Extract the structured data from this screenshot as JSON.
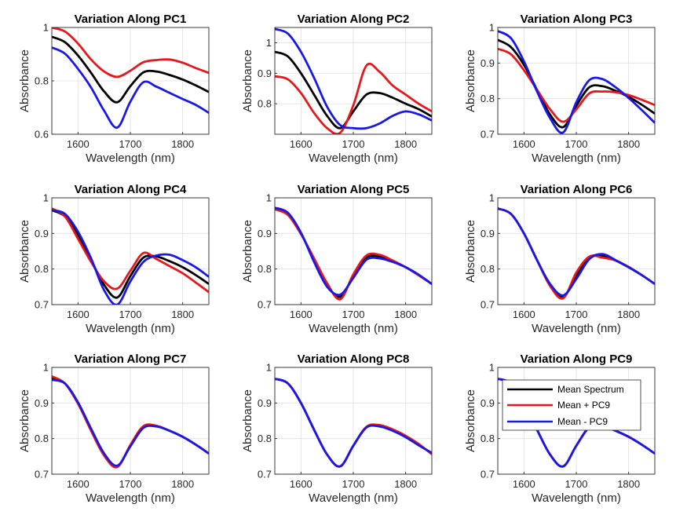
{
  "legend": {
    "entries": [
      "Mean Spectrum",
      "Mean + PC9",
      "Mean - PC9"
    ],
    "colors": [
      "#000000",
      "#e8171b",
      "#1818e8"
    ],
    "location": "northwest of subplot 9"
  },
  "chart_data": [
    {
      "type": "line",
      "title": "Variation Along PC1",
      "xlabel": "Wavelength (nm)",
      "ylabel": "Absorbance",
      "xlim": [
        1550,
        1850
      ],
      "ylim": [
        0.6,
        1.0
      ],
      "xticks": [
        1600,
        1700,
        1800
      ],
      "yticks": [
        0.6,
        0.8,
        1.0
      ],
      "ytick_labels": [
        "0.6",
        "0.8",
        "1"
      ],
      "grid": true,
      "x": [
        1550,
        1575,
        1600,
        1625,
        1650,
        1675,
        1700,
        1725,
        1750,
        1775,
        1800,
        1825,
        1850
      ],
      "series": [
        {
          "name": "Mean Spectrum",
          "color": "#000000",
          "values": [
            0.965,
            0.945,
            0.895,
            0.83,
            0.76,
            0.72,
            0.78,
            0.832,
            0.835,
            0.822,
            0.805,
            0.783,
            0.758
          ]
        },
        {
          "name": "Mean + PC9",
          "color": "#e8171b",
          "values": [
            1.0,
            0.985,
            0.94,
            0.88,
            0.835,
            0.815,
            0.838,
            0.87,
            0.878,
            0.88,
            0.868,
            0.848,
            0.83
          ]
        },
        {
          "name": "Mean - PC9",
          "color": "#1818e8",
          "values": [
            0.925,
            0.902,
            0.845,
            0.775,
            0.688,
            0.625,
            0.722,
            0.795,
            0.778,
            0.755,
            0.732,
            0.71,
            0.68
          ]
        }
      ]
    },
    {
      "type": "line",
      "title": "Variation Along PC2",
      "xlabel": "Wavelength (nm)",
      "ylabel": "Absorbance",
      "xlim": [
        1550,
        1850
      ],
      "ylim": [
        0.7,
        1.05
      ],
      "xticks": [
        1600,
        1700,
        1800
      ],
      "yticks": [
        0.8,
        0.9,
        1.0
      ],
      "ytick_labels": [
        "0.8",
        "0.9",
        "1"
      ],
      "grid": true,
      "x": [
        1550,
        1575,
        1600,
        1625,
        1650,
        1675,
        1700,
        1725,
        1750,
        1775,
        1800,
        1825,
        1850
      ],
      "series": [
        {
          "name": "Mean Spectrum",
          "color": "#000000",
          "values": [
            0.97,
            0.955,
            0.9,
            0.83,
            0.76,
            0.72,
            0.775,
            0.83,
            0.835,
            0.82,
            0.8,
            0.782,
            0.758
          ]
        },
        {
          "name": "Mean + PC9",
          "color": "#e8171b",
          "values": [
            0.89,
            0.88,
            0.835,
            0.77,
            0.72,
            0.705,
            0.795,
            0.925,
            0.905,
            0.86,
            0.83,
            0.8,
            0.775
          ]
        },
        {
          "name": "Mean - PC9",
          "color": "#1818e8",
          "values": [
            1.045,
            1.03,
            0.97,
            0.885,
            0.79,
            0.73,
            0.72,
            0.72,
            0.735,
            0.76,
            0.775,
            0.765,
            0.745
          ]
        }
      ]
    },
    {
      "type": "line",
      "title": "Variation Along PC3",
      "xlabel": "Wavelength (nm)",
      "ylabel": "Absorbance",
      "xlim": [
        1550,
        1850
      ],
      "ylim": [
        0.7,
        1.0
      ],
      "xticks": [
        1600,
        1700,
        1800
      ],
      "yticks": [
        0.7,
        0.8,
        0.9,
        1.0
      ],
      "ytick_labels": [
        "0.7",
        "0.8",
        "0.9",
        "1"
      ],
      "grid": true,
      "x": [
        1550,
        1575,
        1600,
        1625,
        1650,
        1675,
        1700,
        1725,
        1750,
        1775,
        1800,
        1825,
        1850
      ],
      "series": [
        {
          "name": "Mean Spectrum",
          "color": "#000000",
          "values": [
            0.965,
            0.945,
            0.895,
            0.825,
            0.755,
            0.72,
            0.78,
            0.832,
            0.835,
            0.822,
            0.805,
            0.783,
            0.758
          ]
        },
        {
          "name": "Mean + PC9",
          "color": "#e8171b",
          "values": [
            0.94,
            0.925,
            0.88,
            0.825,
            0.77,
            0.735,
            0.77,
            0.815,
            0.82,
            0.818,
            0.81,
            0.797,
            0.782
          ]
        },
        {
          "name": "Mean - PC9",
          "color": "#1818e8",
          "values": [
            0.99,
            0.97,
            0.905,
            0.82,
            0.745,
            0.705,
            0.79,
            0.852,
            0.855,
            0.832,
            0.802,
            0.768,
            0.732
          ]
        }
      ]
    },
    {
      "type": "line",
      "title": "Variation Along PC4",
      "xlabel": "Wavelength (nm)",
      "ylabel": "Absorbance",
      "xlim": [
        1550,
        1850
      ],
      "ylim": [
        0.7,
        1.0
      ],
      "xticks": [
        1600,
        1700,
        1800
      ],
      "yticks": [
        0.7,
        0.8,
        0.9,
        1.0
      ],
      "ytick_labels": [
        "0.7",
        "0.8",
        "0.9",
        "1"
      ],
      "grid": true,
      "x": [
        1550,
        1575,
        1600,
        1625,
        1650,
        1675,
        1700,
        1725,
        1750,
        1775,
        1800,
        1825,
        1850
      ],
      "series": [
        {
          "name": "Mean Spectrum",
          "color": "#000000",
          "values": [
            0.965,
            0.948,
            0.895,
            0.825,
            0.755,
            0.72,
            0.78,
            0.832,
            0.835,
            0.822,
            0.805,
            0.783,
            0.758
          ]
        },
        {
          "name": "Mean + PC9",
          "color": "#e8171b",
          "values": [
            0.97,
            0.948,
            0.885,
            0.82,
            0.765,
            0.745,
            0.795,
            0.845,
            0.828,
            0.808,
            0.788,
            0.762,
            0.735
          ]
        },
        {
          "name": "Mean - PC9",
          "color": "#1818e8",
          "values": [
            0.965,
            0.955,
            0.905,
            0.83,
            0.74,
            0.7,
            0.765,
            0.82,
            0.838,
            0.84,
            0.825,
            0.805,
            0.778
          ]
        }
      ]
    },
    {
      "type": "line",
      "title": "Variation Along PC5",
      "xlabel": "Wavelength (nm)",
      "ylabel": "Absorbance",
      "xlim": [
        1550,
        1850
      ],
      "ylim": [
        0.7,
        1.0
      ],
      "xticks": [
        1600,
        1700,
        1800
      ],
      "yticks": [
        0.7,
        0.8,
        0.9,
        1.0
      ],
      "ytick_labels": [
        "0.7",
        "0.8",
        "0.9",
        "1"
      ],
      "grid": true,
      "x": [
        1550,
        1575,
        1600,
        1625,
        1650,
        1675,
        1700,
        1725,
        1750,
        1775,
        1800,
        1825,
        1850
      ],
      "series": [
        {
          "name": "Mean Spectrum",
          "color": "#000000",
          "values": [
            0.97,
            0.955,
            0.9,
            0.825,
            0.755,
            0.722,
            0.78,
            0.832,
            0.835,
            0.822,
            0.805,
            0.783,
            0.758
          ]
        },
        {
          "name": "Mean + PC9",
          "color": "#e8171b",
          "values": [
            0.968,
            0.952,
            0.898,
            0.83,
            0.76,
            0.715,
            0.785,
            0.838,
            0.84,
            0.824,
            0.805,
            0.782,
            0.758
          ]
        },
        {
          "name": "Mean - PC9",
          "color": "#1818e8",
          "values": [
            0.972,
            0.958,
            0.902,
            0.82,
            0.75,
            0.728,
            0.775,
            0.826,
            0.83,
            0.82,
            0.805,
            0.784,
            0.758
          ]
        }
      ]
    },
    {
      "type": "line",
      "title": "Variation Along PC6",
      "xlabel": "Wavelength (nm)",
      "ylabel": "Absorbance",
      "xlim": [
        1550,
        1850
      ],
      "ylim": [
        0.7,
        1.0
      ],
      "xticks": [
        1600,
        1700,
        1800
      ],
      "yticks": [
        0.7,
        0.8,
        0.9,
        1.0
      ],
      "ytick_labels": [
        "0.7",
        "0.8",
        "0.9",
        "1"
      ],
      "grid": true,
      "x": [
        1550,
        1575,
        1600,
        1625,
        1650,
        1675,
        1700,
        1725,
        1750,
        1775,
        1800,
        1825,
        1850
      ],
      "series": [
        {
          "name": "Mean Spectrum",
          "color": "#000000",
          "values": [
            0.97,
            0.955,
            0.9,
            0.825,
            0.755,
            0.722,
            0.78,
            0.832,
            0.838,
            0.824,
            0.805,
            0.783,
            0.758
          ]
        },
        {
          "name": "Mean + PC9",
          "color": "#e8171b",
          "values": [
            0.97,
            0.955,
            0.9,
            0.825,
            0.752,
            0.718,
            0.79,
            0.835,
            0.832,
            0.824,
            0.806,
            0.783,
            0.758
          ]
        },
        {
          "name": "Mean - PC9",
          "color": "#1818e8",
          "values": [
            0.97,
            0.955,
            0.9,
            0.825,
            0.758,
            0.726,
            0.772,
            0.828,
            0.842,
            0.825,
            0.805,
            0.783,
            0.758
          ]
        }
      ]
    },
    {
      "type": "line",
      "title": "Variation Along PC7",
      "xlabel": "Wavelength (nm)",
      "ylabel": "Absorbance",
      "xlim": [
        1550,
        1850
      ],
      "ylim": [
        0.7,
        1.0
      ],
      "xticks": [
        1600,
        1700,
        1800
      ],
      "yticks": [
        0.7,
        0.8,
        0.9,
        1.0
      ],
      "ytick_labels": [
        "0.7",
        "0.8",
        "0.9",
        "1"
      ],
      "grid": true,
      "x": [
        1550,
        1575,
        1600,
        1625,
        1650,
        1675,
        1700,
        1725,
        1750,
        1775,
        1800,
        1825,
        1850
      ],
      "series": [
        {
          "name": "Mean Spectrum",
          "color": "#000000",
          "values": [
            0.97,
            0.955,
            0.9,
            0.825,
            0.755,
            0.722,
            0.78,
            0.832,
            0.835,
            0.822,
            0.805,
            0.783,
            0.758
          ]
        },
        {
          "name": "Mean + PC9",
          "color": "#e8171b",
          "values": [
            0.975,
            0.955,
            0.898,
            0.822,
            0.752,
            0.72,
            0.782,
            0.835,
            0.836,
            0.822,
            0.805,
            0.783,
            0.758
          ]
        },
        {
          "name": "Mean - PC9",
          "color": "#1818e8",
          "values": [
            0.965,
            0.955,
            0.902,
            0.828,
            0.758,
            0.724,
            0.778,
            0.83,
            0.834,
            0.822,
            0.805,
            0.783,
            0.758
          ]
        }
      ]
    },
    {
      "type": "line",
      "title": "Variation Along PC8",
      "xlabel": "Wavelength (nm)",
      "ylabel": "Absorbance",
      "xlim": [
        1550,
        1850
      ],
      "ylim": [
        0.7,
        1.0
      ],
      "xticks": [
        1600,
        1700,
        1800
      ],
      "yticks": [
        0.7,
        0.8,
        0.9,
        1.0
      ],
      "ytick_labels": [
        "0.7",
        "0.8",
        "0.9",
        "1"
      ],
      "grid": true,
      "x": [
        1550,
        1575,
        1600,
        1625,
        1650,
        1675,
        1700,
        1725,
        1750,
        1775,
        1800,
        1825,
        1850
      ],
      "series": [
        {
          "name": "Mean Spectrum",
          "color": "#000000",
          "values": [
            0.968,
            0.955,
            0.9,
            0.825,
            0.755,
            0.722,
            0.78,
            0.832,
            0.836,
            0.824,
            0.806,
            0.783,
            0.758
          ]
        },
        {
          "name": "Mean + PC9",
          "color": "#e8171b",
          "values": [
            0.968,
            0.955,
            0.9,
            0.825,
            0.755,
            0.722,
            0.78,
            0.833,
            0.838,
            0.826,
            0.808,
            0.785,
            0.756
          ]
        },
        {
          "name": "Mean - PC9",
          "color": "#1818e8",
          "values": [
            0.968,
            0.955,
            0.9,
            0.825,
            0.755,
            0.722,
            0.78,
            0.831,
            0.834,
            0.822,
            0.804,
            0.781,
            0.76
          ]
        }
      ]
    },
    {
      "type": "line",
      "title": "Variation Along PC9",
      "xlabel": "Wavelength (nm)",
      "ylabel": "Absorbance",
      "xlim": [
        1550,
        1850
      ],
      "ylim": [
        0.7,
        1.0
      ],
      "xticks": [
        1600,
        1700,
        1800
      ],
      "yticks": [
        0.7,
        0.8,
        0.9,
        1.0
      ],
      "ytick_labels": [
        "0.7",
        "0.8",
        "0.9",
        "1"
      ],
      "grid": true,
      "x": [
        1550,
        1575,
        1600,
        1625,
        1650,
        1675,
        1700,
        1725,
        1750,
        1775,
        1800,
        1825,
        1850
      ],
      "series": [
        {
          "name": "Mean Spectrum",
          "color": "#000000",
          "values": [
            0.968,
            0.955,
            0.9,
            0.825,
            0.755,
            0.722,
            0.78,
            0.832,
            0.836,
            0.822,
            0.805,
            0.783,
            0.758
          ]
        },
        {
          "name": "Mean + PC9",
          "color": "#e8171b",
          "values": [
            0.968,
            0.955,
            0.9,
            0.825,
            0.755,
            0.722,
            0.78,
            0.832,
            0.836,
            0.822,
            0.805,
            0.783,
            0.758
          ]
        },
        {
          "name": "Mean - PC9",
          "color": "#1818e8",
          "values": [
            0.968,
            0.955,
            0.9,
            0.825,
            0.755,
            0.722,
            0.78,
            0.832,
            0.836,
            0.822,
            0.805,
            0.783,
            0.758
          ]
        }
      ]
    }
  ]
}
